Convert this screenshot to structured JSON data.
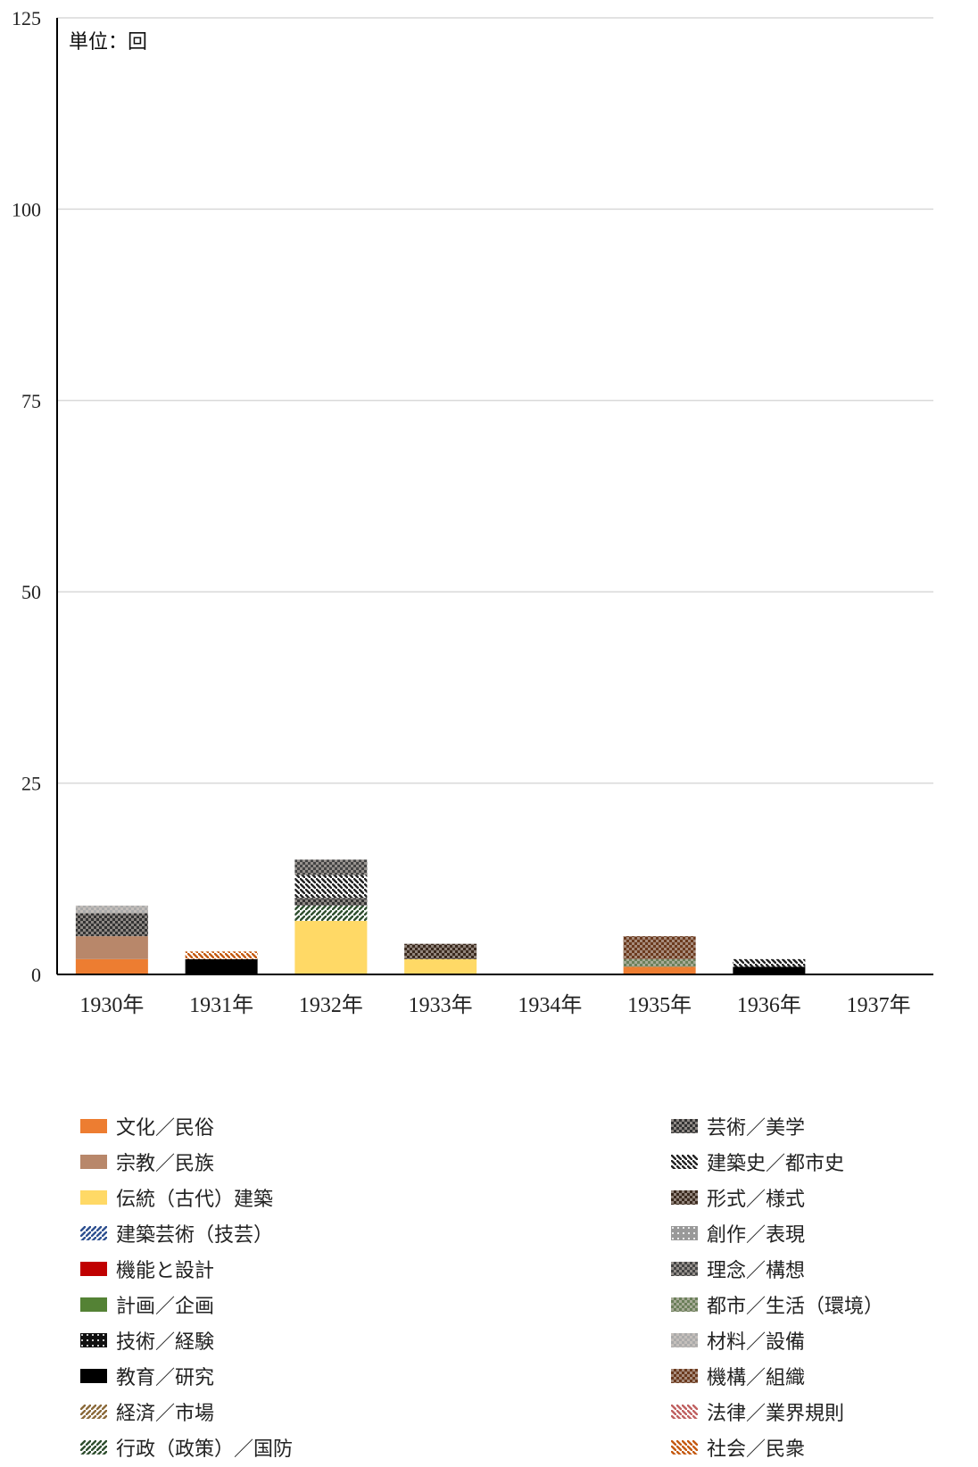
{
  "chart_data": {
    "type": "bar",
    "stacked": true,
    "unit_label": "単位：回",
    "categories": [
      "1930年",
      "1931年",
      "1932年",
      "1933年",
      "1934年",
      "1935年",
      "1936年",
      "1937年"
    ],
    "ylim": [
      0,
      125
    ],
    "yticks": [
      0,
      25,
      50,
      75,
      100,
      125
    ],
    "grid": true,
    "legend_position": "bottom",
    "series": [
      {
        "name": "文化／民俗",
        "color": "#ED7D31",
        "pattern": "solid",
        "values": [
          2,
          0,
          0,
          0,
          0,
          1,
          0,
          0
        ]
      },
      {
        "name": "宗教／民族",
        "color": "#B8876A",
        "pattern": "solid",
        "values": [
          3,
          0,
          0,
          0,
          0,
          0,
          0,
          0
        ]
      },
      {
        "name": "伝統（古代）建築",
        "color": "#FFD966",
        "pattern": "solid",
        "values": [
          0,
          0,
          7,
          2,
          0,
          0,
          0,
          0
        ]
      },
      {
        "name": "建築芸術（技芸）",
        "color": "#2E5090",
        "pattern": "diag",
        "values": [
          0,
          0,
          0,
          0,
          0,
          0,
          0,
          0
        ]
      },
      {
        "name": "機能と設計",
        "color": "#C00000",
        "pattern": "solid",
        "values": [
          0,
          0,
          0,
          0,
          0,
          0,
          0,
          0
        ]
      },
      {
        "name": "計画／企画",
        "color": "#548235",
        "pattern": "solid",
        "values": [
          0,
          0,
          0,
          0,
          0,
          0,
          0,
          0
        ]
      },
      {
        "name": "技術／経験",
        "color": "#111111",
        "pattern": "grid",
        "values": [
          0,
          0,
          0,
          0,
          0,
          0,
          0,
          0
        ]
      },
      {
        "name": "教育／研究",
        "color": "#000000",
        "pattern": "solid",
        "values": [
          0,
          2,
          0,
          0,
          0,
          0,
          1,
          0
        ]
      },
      {
        "name": "経済／市場",
        "color": "#8B6A3A",
        "pattern": "diag",
        "values": [
          0,
          0,
          0,
          0,
          0,
          0,
          0,
          0
        ]
      },
      {
        "name": "行政（政策）／国防",
        "color": "#2F4F2F",
        "pattern": "diag",
        "values": [
          0,
          0,
          2,
          0,
          0,
          0,
          0,
          0
        ]
      },
      {
        "name": "芸術／美学",
        "color": "#333333",
        "pattern": "check",
        "values": [
          3,
          0,
          1,
          0,
          0,
          0,
          0,
          0
        ]
      },
      {
        "name": "建築史／都市史",
        "color": "#222222",
        "pattern": "diagdown",
        "values": [
          0,
          0,
          3,
          0,
          0,
          0,
          1,
          0
        ]
      },
      {
        "name": "形式／様式",
        "color": "#3B2A1E",
        "pattern": "check",
        "values": [
          0,
          0,
          0,
          2,
          0,
          0,
          0,
          0
        ]
      },
      {
        "name": "創作／表現",
        "color": "#999999",
        "pattern": "grid",
        "values": [
          0,
          0,
          0,
          0,
          0,
          0,
          0,
          0
        ]
      },
      {
        "name": "理念／構想",
        "color": "#444444",
        "pattern": "check",
        "values": [
          0,
          0,
          2,
          0,
          0,
          0,
          0,
          0
        ]
      },
      {
        "name": "都市／生活（環境）",
        "color": "#6B7F5A",
        "pattern": "check",
        "values": [
          0,
          0,
          0,
          0,
          0,
          1,
          0,
          0
        ]
      },
      {
        "name": "材料／設備",
        "color": "#AAAAAA",
        "pattern": "check",
        "values": [
          1,
          0,
          0,
          0,
          0,
          0,
          0,
          0
        ]
      },
      {
        "name": "機構／組織",
        "color": "#6B3A1E",
        "pattern": "check",
        "values": [
          0,
          0,
          0,
          0,
          0,
          3,
          0,
          0
        ]
      },
      {
        "name": "法律／業界規則",
        "color": "#C06060",
        "pattern": "diagdown",
        "values": [
          0,
          0,
          0,
          0,
          0,
          0,
          0,
          0
        ]
      },
      {
        "name": "社会／民衆",
        "color": "#C55A11",
        "pattern": "diagdown",
        "values": [
          0,
          1,
          0,
          0,
          0,
          0,
          0,
          0
        ]
      }
    ]
  }
}
